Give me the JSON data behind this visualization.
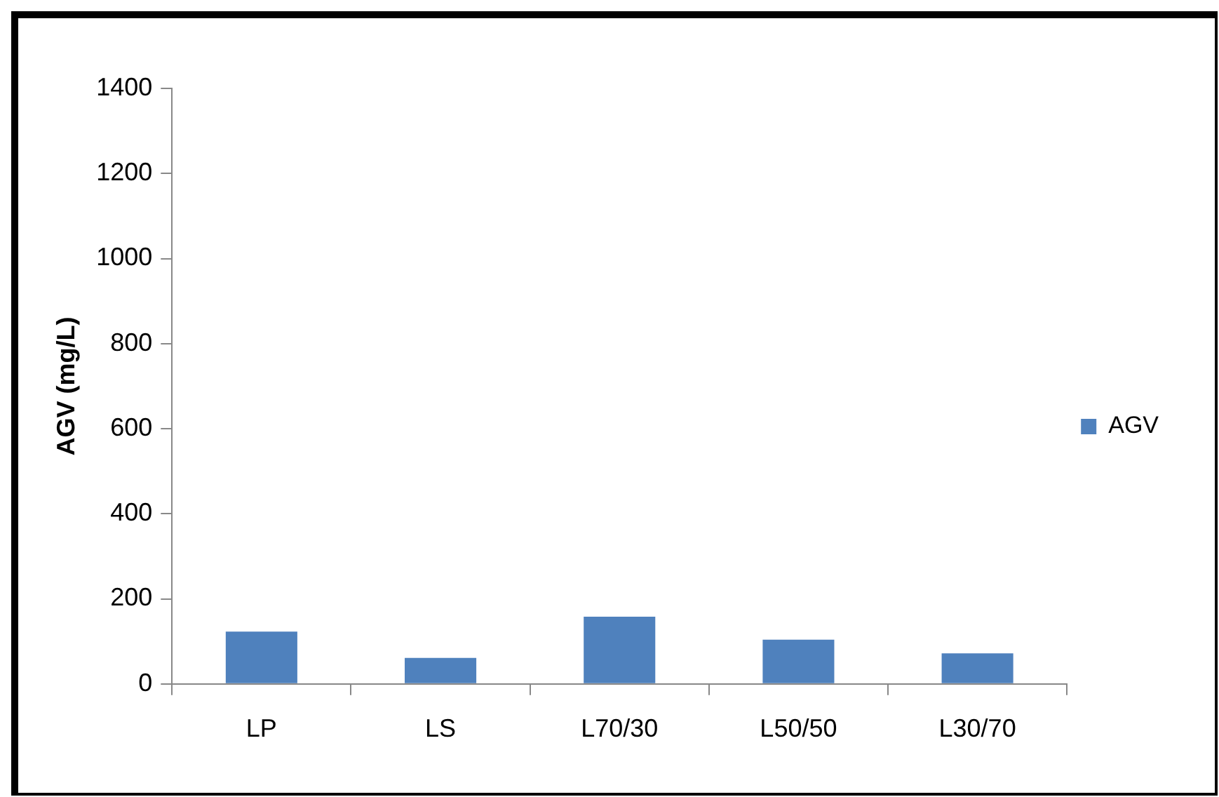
{
  "chart_data": {
    "type": "bar",
    "ylabel": "AGV (mg/L)",
    "categories": [
      "LP",
      "LS",
      "L70/30",
      "L50/50",
      "L30/70"
    ],
    "series": [
      {
        "name": "AGV",
        "color": "#4f81bd",
        "values": [
          123,
          61,
          158,
          104,
          72
        ]
      }
    ],
    "ylim": [
      0,
      1400
    ],
    "yticks": [
      0,
      200,
      400,
      600,
      800,
      1000,
      1200,
      1400
    ],
    "grid": false,
    "legend": "right"
  }
}
